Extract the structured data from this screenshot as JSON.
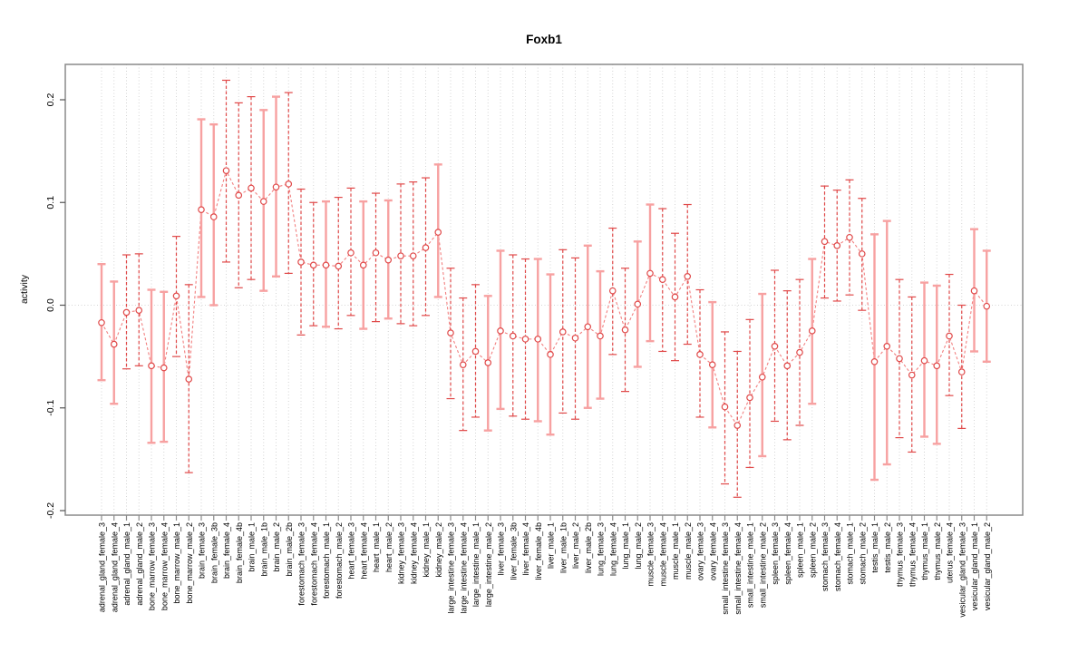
{
  "chart_data": {
    "type": "scatter",
    "subtype": "points-with-error-bars",
    "title": "Foxb1",
    "xlabel": "",
    "ylabel": "activity",
    "ylim": [
      -0.2,
      0.2
    ],
    "ytick_values": [
      0.2,
      0.1,
      0.0,
      -0.1,
      -0.2
    ],
    "ytick_labels": [
      "0.2",
      "0.1",
      "0.0",
      "-0.1",
      "-0.2"
    ],
    "grid": "dotted vertical line per category; dotted horizontal line at y=0",
    "legend": "none",
    "point_marker": "open-circle",
    "connect_style": "dashed",
    "colors": {
      "point": "#e04949",
      "dashed_bar": "#e04949",
      "solid_bar": "#f7a1a1",
      "connect_line": "#f28080",
      "grid": "#d4d4d4",
      "frame": "#8a8a8a",
      "text": "#000000",
      "background": "#ffffff"
    },
    "points": [
      {
        "label": "adrenal_gland_female_3",
        "value": -0.017,
        "lo": -0.073,
        "hi": 0.04,
        "bar": "solid"
      },
      {
        "label": "adrenal_gland_female_4",
        "value": -0.038,
        "lo": -0.096,
        "hi": 0.023,
        "bar": "solid"
      },
      {
        "label": "adrenal_gland_male_1",
        "value": -0.007,
        "lo": -0.062,
        "hi": 0.049,
        "bar": "dashed"
      },
      {
        "label": "adrenal_gland_male_2",
        "value": -0.005,
        "lo": -0.059,
        "hi": 0.05,
        "bar": "dashed"
      },
      {
        "label": "bone_marrow_female_3",
        "value": -0.059,
        "lo": -0.134,
        "hi": 0.015,
        "bar": "solid"
      },
      {
        "label": "bone_marrow_female_4",
        "value": -0.061,
        "lo": -0.133,
        "hi": 0.013,
        "bar": "solid"
      },
      {
        "label": "bone_marrow_male_1",
        "value": 0.009,
        "lo": -0.05,
        "hi": 0.067,
        "bar": "dashed"
      },
      {
        "label": "bone_marrow_male_2",
        "value": -0.072,
        "lo": -0.163,
        "hi": 0.02,
        "bar": "dashed"
      },
      {
        "label": "brain_female_3",
        "value": 0.093,
        "lo": 0.008,
        "hi": 0.181,
        "bar": "solid"
      },
      {
        "label": "brain_female_3b",
        "value": 0.086,
        "lo": 0.0,
        "hi": 0.176,
        "bar": "solid"
      },
      {
        "label": "brain_female_4",
        "value": 0.131,
        "lo": 0.042,
        "hi": 0.219,
        "bar": "dashed"
      },
      {
        "label": "brain_female_4b",
        "value": 0.107,
        "lo": 0.017,
        "hi": 0.197,
        "bar": "dashed"
      },
      {
        "label": "brain_male_1",
        "value": 0.114,
        "lo": 0.025,
        "hi": 0.203,
        "bar": "dashed"
      },
      {
        "label": "brain_male_1b",
        "value": 0.101,
        "lo": 0.014,
        "hi": 0.19,
        "bar": "solid"
      },
      {
        "label": "brain_male_2",
        "value": 0.115,
        "lo": 0.028,
        "hi": 0.203,
        "bar": "solid"
      },
      {
        "label": "brain_male_2b",
        "value": 0.118,
        "lo": 0.031,
        "hi": 0.207,
        "bar": "dashed"
      },
      {
        "label": "forestomach_female_3",
        "value": 0.042,
        "lo": -0.029,
        "hi": 0.113,
        "bar": "dashed"
      },
      {
        "label": "forestomach_female_4",
        "value": 0.039,
        "lo": -0.02,
        "hi": 0.1,
        "bar": "dashed"
      },
      {
        "label": "forestomach_male_1",
        "value": 0.039,
        "lo": -0.021,
        "hi": 0.101,
        "bar": "solid"
      },
      {
        "label": "forestomach_male_2",
        "value": 0.038,
        "lo": -0.023,
        "hi": 0.105,
        "bar": "dashed"
      },
      {
        "label": "heart_female_3",
        "value": 0.051,
        "lo": -0.01,
        "hi": 0.114,
        "bar": "dashed"
      },
      {
        "label": "heart_female_4",
        "value": 0.039,
        "lo": -0.023,
        "hi": 0.101,
        "bar": "solid"
      },
      {
        "label": "heart_male_1",
        "value": 0.051,
        "lo": -0.016,
        "hi": 0.109,
        "bar": "dashed"
      },
      {
        "label": "heart_male_2",
        "value": 0.044,
        "lo": -0.013,
        "hi": 0.102,
        "bar": "solid"
      },
      {
        "label": "kidney_female_3",
        "value": 0.048,
        "lo": -0.018,
        "hi": 0.118,
        "bar": "dashed"
      },
      {
        "label": "kidney_female_4",
        "value": 0.048,
        "lo": -0.02,
        "hi": 0.12,
        "bar": "dashed"
      },
      {
        "label": "kidney_male_1",
        "value": 0.056,
        "lo": -0.01,
        "hi": 0.124,
        "bar": "dashed"
      },
      {
        "label": "kidney_male_2",
        "value": 0.071,
        "lo": 0.008,
        "hi": 0.137,
        "bar": "solid"
      },
      {
        "label": "large_intestine_female_3",
        "value": -0.027,
        "lo": -0.091,
        "hi": 0.036,
        "bar": "dashed"
      },
      {
        "label": "large_intestine_female_4",
        "value": -0.058,
        "lo": -0.122,
        "hi": 0.007,
        "bar": "dashed"
      },
      {
        "label": "large_intestine_male_1",
        "value": -0.045,
        "lo": -0.109,
        "hi": 0.02,
        "bar": "dashed"
      },
      {
        "label": "large_intestine_male_2",
        "value": -0.056,
        "lo": -0.122,
        "hi": 0.009,
        "bar": "solid"
      },
      {
        "label": "liver_female_3",
        "value": -0.025,
        "lo": -0.101,
        "hi": 0.053,
        "bar": "solid"
      },
      {
        "label": "liver_female_3b",
        "value": -0.03,
        "lo": -0.108,
        "hi": 0.049,
        "bar": "dashed"
      },
      {
        "label": "liver_female_4",
        "value": -0.033,
        "lo": -0.111,
        "hi": 0.045,
        "bar": "dashed"
      },
      {
        "label": "liver_female_4b",
        "value": -0.033,
        "lo": -0.113,
        "hi": 0.045,
        "bar": "solid"
      },
      {
        "label": "liver_male_1",
        "value": -0.048,
        "lo": -0.126,
        "hi": 0.03,
        "bar": "solid"
      },
      {
        "label": "liver_male_1b",
        "value": -0.026,
        "lo": -0.105,
        "hi": 0.054,
        "bar": "dashed"
      },
      {
        "label": "liver_male_2",
        "value": -0.032,
        "lo": -0.111,
        "hi": 0.046,
        "bar": "dashed"
      },
      {
        "label": "liver_male_2b",
        "value": -0.021,
        "lo": -0.1,
        "hi": 0.058,
        "bar": "solid"
      },
      {
        "label": "lung_female_3",
        "value": -0.03,
        "lo": -0.091,
        "hi": 0.033,
        "bar": "solid"
      },
      {
        "label": "lung_female_4",
        "value": 0.014,
        "lo": -0.048,
        "hi": 0.075,
        "bar": "dashed"
      },
      {
        "label": "lung_male_1",
        "value": -0.024,
        "lo": -0.084,
        "hi": 0.036,
        "bar": "dashed"
      },
      {
        "label": "lung_male_2",
        "value": 0.001,
        "lo": -0.06,
        "hi": 0.062,
        "bar": "solid"
      },
      {
        "label": "muscle_female_3",
        "value": 0.031,
        "lo": -0.035,
        "hi": 0.098,
        "bar": "solid"
      },
      {
        "label": "muscle_female_4",
        "value": 0.025,
        "lo": -0.045,
        "hi": 0.094,
        "bar": "dashed"
      },
      {
        "label": "muscle_male_1",
        "value": 0.008,
        "lo": -0.054,
        "hi": 0.07,
        "bar": "dashed"
      },
      {
        "label": "muscle_male_2",
        "value": 0.028,
        "lo": -0.038,
        "hi": 0.098,
        "bar": "dashed"
      },
      {
        "label": "ovary_female_3",
        "value": -0.048,
        "lo": -0.109,
        "hi": 0.015,
        "bar": "dashed"
      },
      {
        "label": "ovary_female_4",
        "value": -0.058,
        "lo": -0.119,
        "hi": 0.003,
        "bar": "solid"
      },
      {
        "label": "small_intestine_female_3",
        "value": -0.099,
        "lo": -0.174,
        "hi": -0.026,
        "bar": "dashed"
      },
      {
        "label": "small_intestine_female_4",
        "value": -0.117,
        "lo": -0.187,
        "hi": -0.045,
        "bar": "dashed"
      },
      {
        "label": "small_intestine_male_1",
        "value": -0.09,
        "lo": -0.158,
        "hi": -0.014,
        "bar": "dashed"
      },
      {
        "label": "small_intestine_male_2",
        "value": -0.07,
        "lo": -0.147,
        "hi": 0.011,
        "bar": "solid"
      },
      {
        "label": "spleen_female_3",
        "value": -0.04,
        "lo": -0.113,
        "hi": 0.034,
        "bar": "dashed"
      },
      {
        "label": "spleen_female_4",
        "value": -0.059,
        "lo": -0.131,
        "hi": 0.014,
        "bar": "dashed"
      },
      {
        "label": "spleen_male_1",
        "value": -0.046,
        "lo": -0.117,
        "hi": 0.025,
        "bar": "dashed"
      },
      {
        "label": "spleen_male_2",
        "value": -0.025,
        "lo": -0.096,
        "hi": 0.045,
        "bar": "solid"
      },
      {
        "label": "stomach_female_3",
        "value": 0.062,
        "lo": 0.007,
        "hi": 0.116,
        "bar": "dashed"
      },
      {
        "label": "stomach_female_4",
        "value": 0.058,
        "lo": 0.004,
        "hi": 0.112,
        "bar": "dashed"
      },
      {
        "label": "stomach_male_1",
        "value": 0.066,
        "lo": 0.01,
        "hi": 0.122,
        "bar": "dashed"
      },
      {
        "label": "stomach_male_2",
        "value": 0.05,
        "lo": -0.005,
        "hi": 0.104,
        "bar": "dashed"
      },
      {
        "label": "testis_male_1",
        "value": -0.055,
        "lo": -0.17,
        "hi": 0.069,
        "bar": "solid"
      },
      {
        "label": "testis_male_2",
        "value": -0.04,
        "lo": -0.155,
        "hi": 0.082,
        "bar": "solid"
      },
      {
        "label": "thymus_female_3",
        "value": -0.052,
        "lo": -0.129,
        "hi": 0.025,
        "bar": "dashed"
      },
      {
        "label": "thymus_female_4",
        "value": -0.068,
        "lo": -0.143,
        "hi": 0.008,
        "bar": "dashed"
      },
      {
        "label": "thymus_male_1",
        "value": -0.054,
        "lo": -0.128,
        "hi": 0.022,
        "bar": "solid"
      },
      {
        "label": "thymus_male_2",
        "value": -0.059,
        "lo": -0.135,
        "hi": 0.019,
        "bar": "solid"
      },
      {
        "label": "uterus_female_4",
        "value": -0.03,
        "lo": -0.088,
        "hi": 0.03,
        "bar": "dashed"
      },
      {
        "label": "vesicular_gland_female_3",
        "value": -0.065,
        "lo": -0.12,
        "hi": 0.0,
        "bar": "dashed"
      },
      {
        "label": "vesicular_gland_male_1",
        "value": 0.014,
        "lo": -0.045,
        "hi": 0.074,
        "bar": "solid"
      },
      {
        "label": "vesicular_gland_male_2",
        "value": -0.001,
        "lo": -0.055,
        "hi": 0.053,
        "bar": "solid"
      }
    ]
  }
}
